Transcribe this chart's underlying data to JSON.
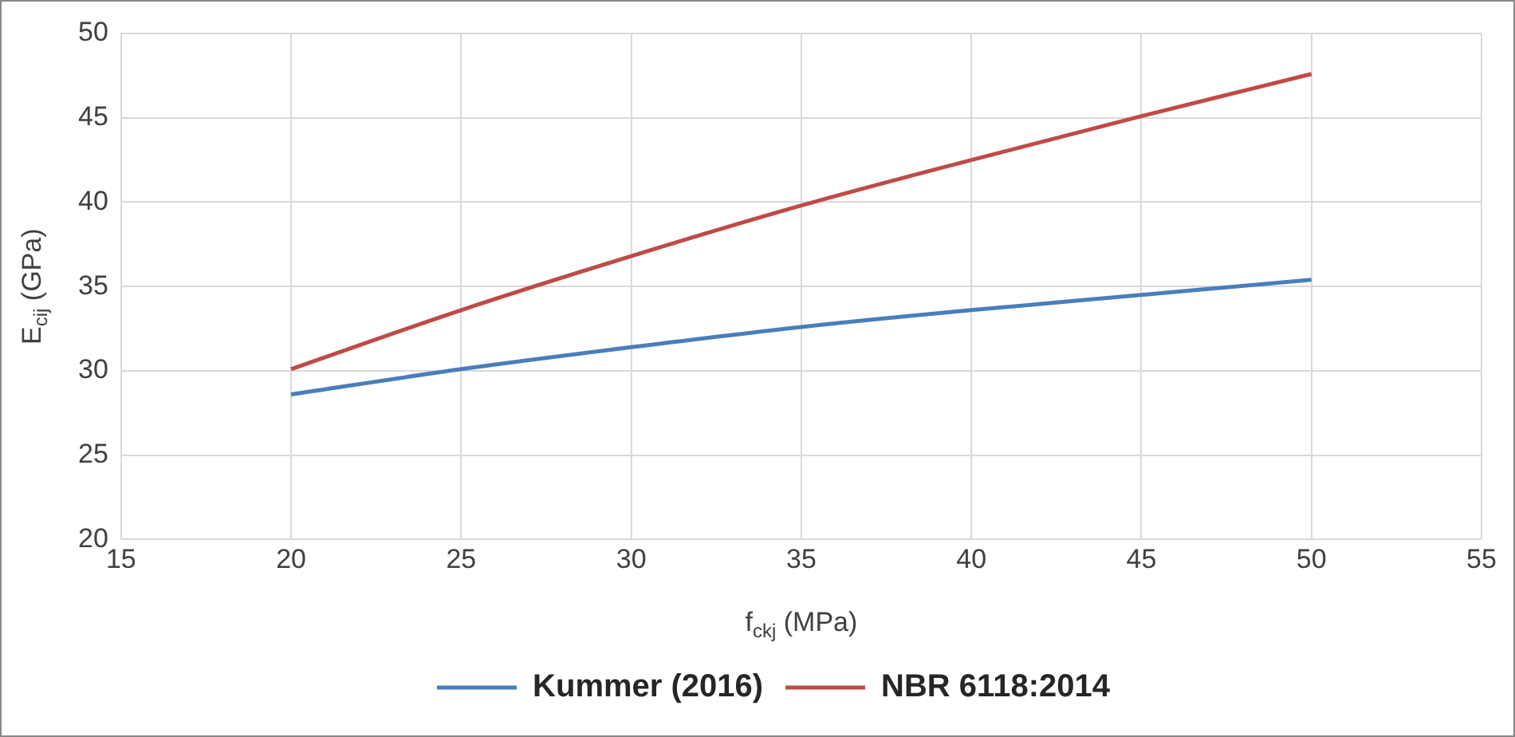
{
  "chart_data": {
    "type": "line",
    "xlabel": "f$_{ckj}$ (MPa)",
    "ylabel": "E$_{cij}$ (GPa)",
    "x": [
      20,
      25,
      30,
      35,
      40,
      45,
      50
    ],
    "series": [
      {
        "name": "Kummer (2016)",
        "color": "#4a7ebb",
        "values": [
          28.6,
          30.1,
          31.4,
          32.6,
          33.6,
          34.5,
          35.4
        ]
      },
      {
        "name": "NBR 6118:2014",
        "color": "#be4b48",
        "values": [
          30.1,
          33.6,
          36.8,
          39.8,
          42.5,
          45.1,
          47.6
        ]
      }
    ],
    "xlim": [
      15,
      55
    ],
    "xticks": [
      15,
      20,
      25,
      30,
      35,
      40,
      45,
      50,
      55
    ],
    "ylim": [
      20,
      50
    ],
    "yticks": [
      20,
      25,
      30,
      35,
      40,
      45,
      50
    ],
    "grid": true,
    "legend": "bottom",
    "marker": "none",
    "line_style": "solid"
  }
}
